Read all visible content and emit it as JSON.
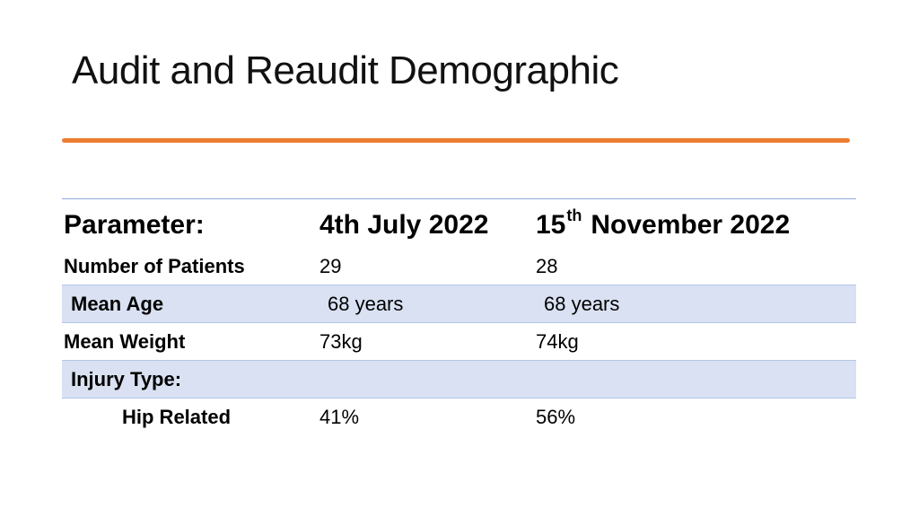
{
  "title": "Audit and Reaudit Demographic",
  "colors": {
    "accent_rule": "#ED7D31",
    "row_shade": "#D9E1F2",
    "table_border": "#8EA9DB"
  },
  "table": {
    "header": {
      "parameter": "Parameter:",
      "col1": "4th July 2022",
      "col2_day": "15",
      "col2_sup": "th",
      "col2_rest": "November 2022"
    },
    "rows": [
      {
        "label": "Number of Patients",
        "col1": "29",
        "col2": "28"
      },
      {
        "label": "Mean Age",
        "col1": "68 years",
        "col2": "68 years"
      },
      {
        "label": "Mean Weight",
        "col1": "73kg",
        "col2": "74kg"
      },
      {
        "label": "Injury Type:",
        "col1": "",
        "col2": ""
      },
      {
        "label": "Hip Related",
        "col1": "41%",
        "col2": "56%"
      }
    ]
  }
}
